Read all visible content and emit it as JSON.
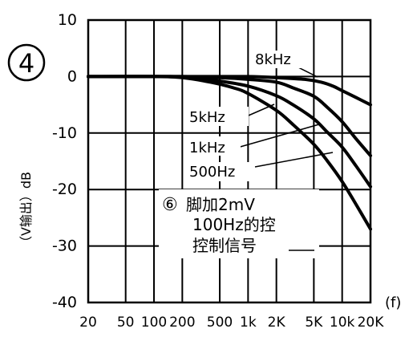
{
  "chart_data": {
    "type": "line",
    "figure_label": "4",
    "title": "",
    "xlabel": "(f)",
    "ylabel": "（V输出）dB",
    "x_scale": "log",
    "xlim": [
      20,
      20000
    ],
    "ylim": [
      -40,
      10
    ],
    "grid": true,
    "x_tick_values": [
      20,
      50,
      100,
      200,
      500,
      1000,
      2000,
      5000,
      10000,
      20000
    ],
    "x_tick_labels": [
      "20",
      "50",
      "100",
      "200",
      "500",
      "1k",
      "2K",
      "5K",
      "10k",
      "20K"
    ],
    "y_tick_values": [
      10,
      0,
      -10,
      -20,
      -30,
      -40
    ],
    "y_tick_labels": [
      "10",
      "0",
      "-10",
      "-20",
      "-30",
      "-40"
    ],
    "series": [
      {
        "name": "8kHz",
        "x": [
          20,
          200,
          1000,
          2000,
          4000,
          6000,
          8000,
          10000,
          14000,
          20000
        ],
        "y": [
          0,
          0,
          0,
          -0.2,
          -0.5,
          -1,
          -1.7,
          -2.5,
          -3.7,
          -5
        ]
      },
      {
        "name": "5kHz",
        "x": [
          20,
          200,
          500,
          1000,
          2000,
          3000,
          5000,
          7000,
          10000,
          14000,
          20000
        ],
        "y": [
          0,
          0,
          -0.2,
          -0.5,
          -1,
          -2,
          -3.5,
          -5.5,
          -8,
          -11,
          -14
        ]
      },
      {
        "name": "1kHz",
        "x": [
          20,
          150,
          300,
          500,
          1000,
          2000,
          3000,
          5000,
          7000,
          10000,
          14000,
          20000
        ],
        "y": [
          0,
          0,
          -0.3,
          -0.8,
          -1.7,
          -3.4,
          -5,
          -7.5,
          -9.9,
          -12.5,
          -15.8,
          -19.5
        ]
      },
      {
        "name": "500Hz",
        "x": [
          20,
          100,
          200,
          400,
          700,
          1000,
          2000,
          3000,
          5000,
          7000,
          10000,
          14000,
          20000
        ],
        "y": [
          0,
          0,
          -0.2,
          -1,
          -2,
          -3,
          -6,
          -8.5,
          -12,
          -15,
          -18.6,
          -22.6,
          -27
        ]
      }
    ],
    "annotations": {
      "series_label_8k": "8kHz",
      "series_label_5k": "5kHz",
      "series_label_1k": "1kHz",
      "series_label_500": "500Hz",
      "note_circled": "⑥",
      "note_line1": "脚加2mV",
      "note_line2": "100Hz的控",
      "note_line3": "控制信号"
    },
    "colors": {
      "ink": "#000000",
      "paper": "#ffffff"
    }
  }
}
